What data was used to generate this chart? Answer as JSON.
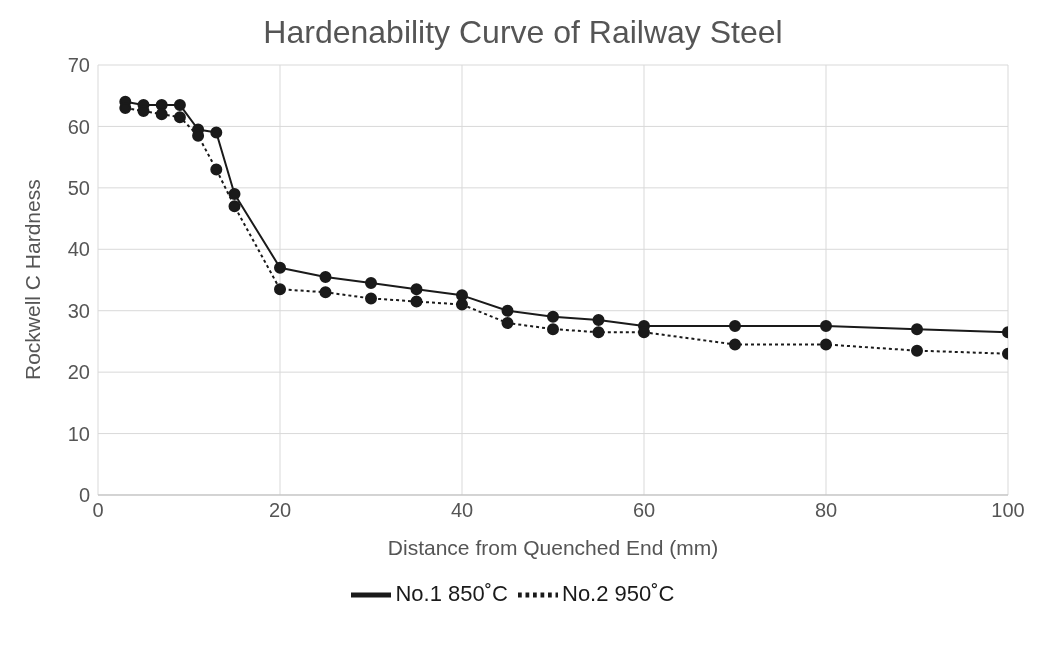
{
  "chart_data": {
    "type": "line",
    "title": "Hardenability Curve of Railway Steel",
    "xlabel": "Distance from Quenched End (mm)",
    "ylabel": "Rockwell C Hardness",
    "x": [
      3,
      5,
      7,
      9,
      11,
      13,
      15,
      20,
      25,
      30,
      35,
      40,
      45,
      50,
      55,
      60,
      70,
      80,
      90,
      100
    ],
    "series": [
      {
        "name": "No.1 850˚C",
        "color": "#1a1a1a",
        "line_style": "solid",
        "values": [
          64,
          63.5,
          63.5,
          63.5,
          59.5,
          59,
          49,
          37,
          35.5,
          34.5,
          33.5,
          32.5,
          30,
          29,
          28.5,
          27.5,
          27.5,
          27.5,
          27,
          26.5
        ]
      },
      {
        "name": "No.2 950˚C",
        "color": "#1a1a1a",
        "line_style": "dotted",
        "values": [
          63,
          62.5,
          62,
          61.5,
          58.5,
          53,
          47,
          33.5,
          33,
          32,
          31.5,
          31,
          28,
          27,
          26.5,
          26.5,
          24.5,
          24.5,
          23.5,
          23
        ]
      }
    ],
    "xlim": [
      0,
      100
    ],
    "xticks": [
      0,
      20,
      40,
      60,
      80,
      100
    ],
    "ylim": [
      0,
      70
    ],
    "yticks": [
      0,
      10,
      20,
      30,
      40,
      50,
      60,
      70
    ],
    "grid": true,
    "legend": "bottom",
    "marker": "circle"
  }
}
